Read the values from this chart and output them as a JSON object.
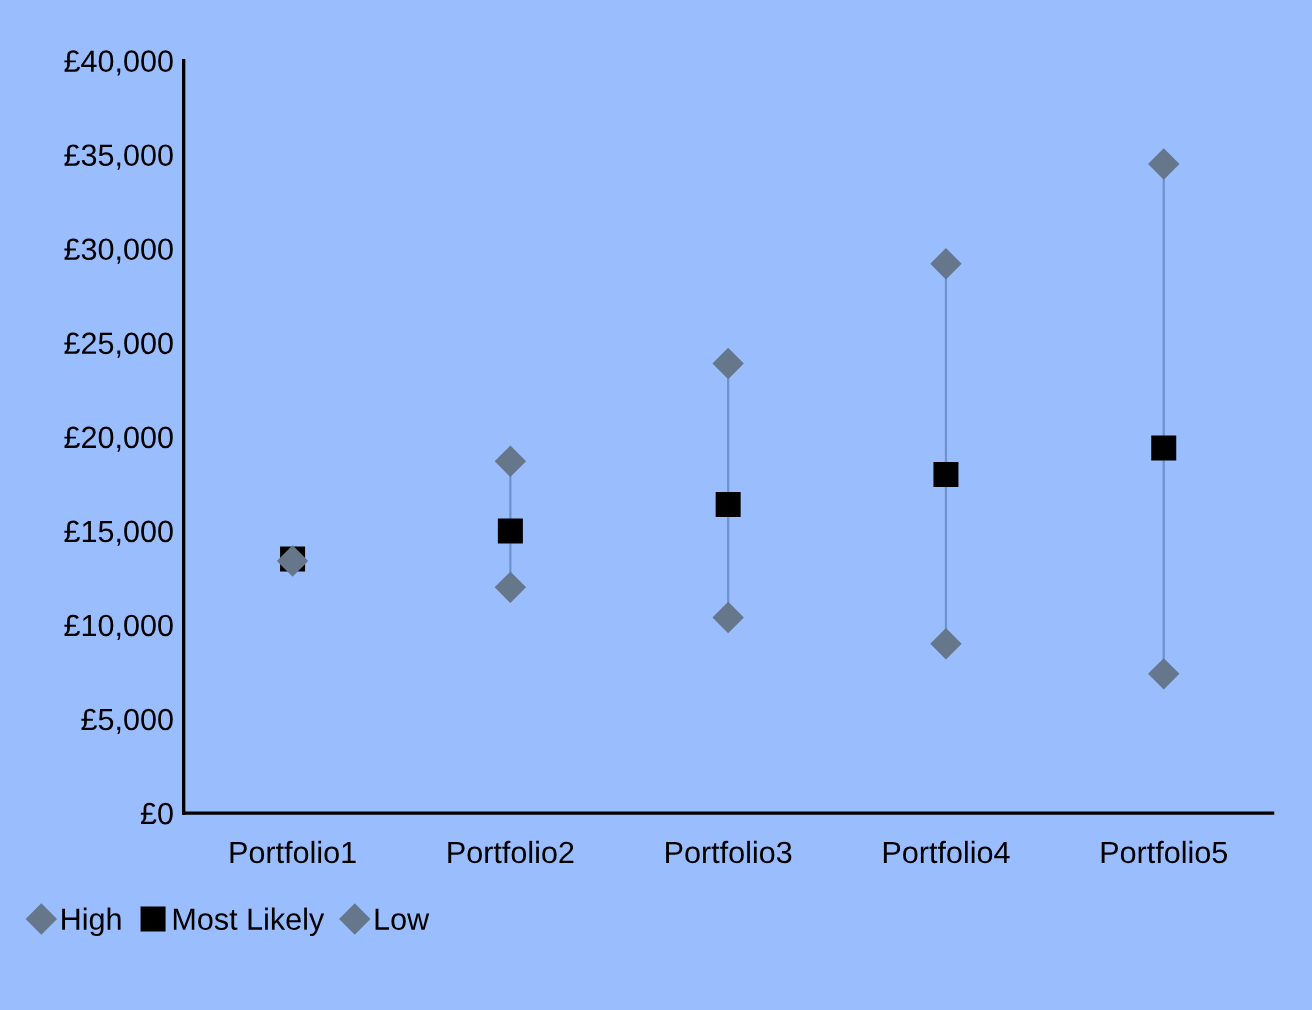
{
  "chart_data": {
    "type": "scatter",
    "categories": [
      "Portfolio1",
      "Portfolio2",
      "Portfolio3",
      "Portfolio4",
      "Portfolio5"
    ],
    "series": [
      {
        "name": "High",
        "color": "#66778c",
        "marker": "diamond",
        "values": [
          null,
          18700,
          23900,
          29200,
          34500
        ]
      },
      {
        "name": "Most Likely",
        "color": "#000000",
        "marker": "square",
        "values": [
          13500,
          15000,
          16400,
          18000,
          19400
        ]
      },
      {
        "name": "Low",
        "color": "#66778c",
        "marker": "diamond",
        "values": [
          13400,
          12000,
          10400,
          9000,
          7400
        ]
      }
    ],
    "ylim": [
      0,
      40000
    ],
    "yticks": [
      {
        "value": 0,
        "label": "£0"
      },
      {
        "value": 5000,
        "label": "£5,000"
      },
      {
        "value": 10000,
        "label": "£10,000"
      },
      {
        "value": 15000,
        "label": "£15,000"
      },
      {
        "value": 20000,
        "label": "£20,000"
      },
      {
        "value": 25000,
        "label": "£25,000"
      },
      {
        "value": 30000,
        "label": "£30,000"
      },
      {
        "value": 35000,
        "label": "£35,000"
      },
      {
        "value": 40000,
        "label": "£40,000"
      }
    ],
    "grid": false,
    "legend": "bottom left"
  }
}
